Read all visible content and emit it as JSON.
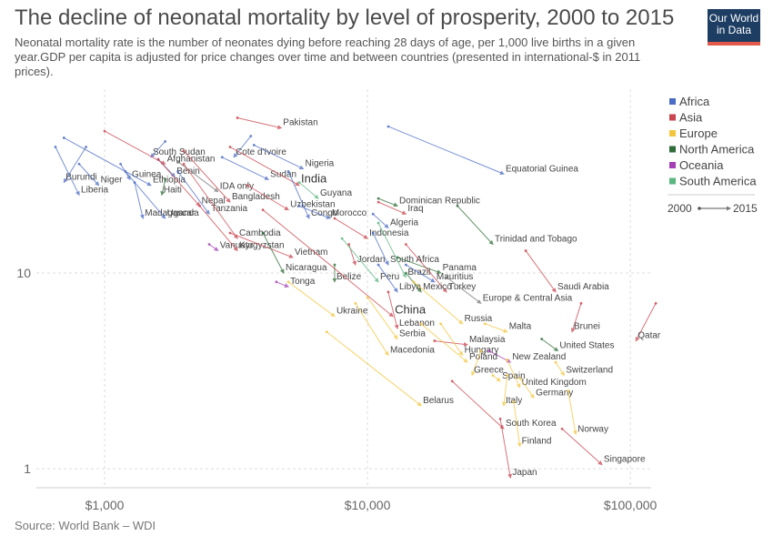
{
  "header": {
    "title": "The decline of neonatal mortality by level of prosperity, 2000 to 2015",
    "subtitle": "Neonatal mortality rate is the number of neonates dying before reaching 28 days of age, per 1,000 live births in a given year.GDP per capita is adjusted for price changes over time and between countries (presented in international-$ in 2011 prices).",
    "logo_line1": "Our World",
    "logo_line2": "in Data"
  },
  "footer": {
    "source": "Source: World Bank – WDI"
  },
  "colors": {
    "Africa": "#4b6cc4",
    "Asia": "#c9454f",
    "Europe": "#f3c640",
    "North America": "#2e6d38",
    "Oceania": "#a43fb5",
    "South America": "#5ab780",
    "World": "#777777"
  },
  "chart_data": {
    "type": "scatter",
    "x_scale": "log",
    "y_scale": "log",
    "xlim": [
      550,
      120000
    ],
    "ylim": [
      0.8,
      78
    ],
    "x_ticks": [
      {
        "value": 1000,
        "label": "$1,000"
      },
      {
        "value": 10000,
        "label": "$10,000"
      },
      {
        "value": 100000,
        "label": "$100,000"
      }
    ],
    "y_ticks": [
      {
        "value": 1,
        "label": "1"
      },
      {
        "value": 10,
        "label": "10"
      }
    ],
    "grid": true,
    "legend": {
      "position": "right",
      "entries": [
        "Africa",
        "Asia",
        "Europe",
        "North America",
        "Oceania",
        "South America"
      ],
      "arrow_start": "2000",
      "arrow_end": "2015"
    },
    "series": [
      {
        "name": "Pakistan",
        "region": "Asia",
        "x": [
          3200,
          4700
        ],
        "y": [
          62,
          55
        ],
        "label_size": "small"
      },
      {
        "name": "South Sudan",
        "region": "Africa",
        "x": [
          1700,
          1500
        ],
        "y": [
          47,
          39
        ],
        "label_size": "small"
      },
      {
        "name": "Afghanistan",
        "region": "Asia",
        "x": [
          1000,
          1700
        ],
        "y": [
          53,
          36
        ],
        "label_size": "small"
      },
      {
        "name": "Cote d'Ivoire",
        "region": "Africa",
        "x": [
          3600,
          3100
        ],
        "y": [
          50,
          39
        ],
        "label_size": "small"
      },
      {
        "name": "Nigeria",
        "region": "Africa",
        "x": [
          3700,
          5700
        ],
        "y": [
          45,
          34
        ],
        "label_size": "small"
      },
      {
        "name": "Benin",
        "region": "Africa",
        "x": [
          1600,
          1850
        ],
        "y": [
          38,
          31
        ],
        "label_size": "small"
      },
      {
        "name": "Guinea",
        "region": "Africa",
        "x": [
          1150,
          1250
        ],
        "y": [
          36,
          30
        ],
        "label_size": "small"
      },
      {
        "name": "Sudan",
        "region": "Africa",
        "x": [
          2800,
          4200
        ],
        "y": [
          39,
          30
        ],
        "label_size": "small"
      },
      {
        "name": "India",
        "region": "Asia",
        "x": [
          3000,
          5500
        ],
        "y": [
          44,
          28
        ],
        "label_size": "large"
      },
      {
        "name": "Ethiopia",
        "region": "Africa",
        "x": [
          700,
          1500
        ],
        "y": [
          49,
          28
        ],
        "label_size": "small"
      },
      {
        "name": "Burundi",
        "region": "Africa",
        "x": [
          850,
          700
        ],
        "y": [
          44,
          29
        ],
        "label_size": "small"
      },
      {
        "name": "Niger",
        "region": "Africa",
        "x": [
          800,
          950
        ],
        "y": [
          36,
          28
        ],
        "label_size": "small"
      },
      {
        "name": "Haiti",
        "region": "North America",
        "x": [
          1700,
          1650
        ],
        "y": [
          30,
          25
        ],
        "label_size": "small"
      },
      {
        "name": "IDA only",
        "region": "World",
        "x": [
          1900,
          2700
        ],
        "y": [
          37,
          26
        ],
        "label_size": "small"
      },
      {
        "name": "Liberia",
        "region": "Africa",
        "x": [
          650,
          800
        ],
        "y": [
          44,
          25
        ],
        "label_size": "small"
      },
      {
        "name": "Nepal",
        "region": "Asia",
        "x": [
          1600,
          2300
        ],
        "y": [
          38,
          22
        ],
        "label_size": "small"
      },
      {
        "name": "Bangladesh",
        "region": "Asia",
        "x": [
          2000,
          3000
        ],
        "y": [
          42,
          23
        ],
        "label_size": "small"
      },
      {
        "name": "Guyana",
        "region": "South America",
        "x": [
          5500,
          6500
        ],
        "y": [
          29,
          24
        ],
        "label_size": "small"
      },
      {
        "name": "Dominican Republic",
        "region": "North America",
        "x": [
          11000,
          13000
        ],
        "y": [
          24,
          22
        ],
        "label_size": "small"
      },
      {
        "name": "Equatorial Guinea",
        "region": "Africa",
        "x": [
          12000,
          33000
        ],
        "y": [
          56,
          32
        ],
        "label_size": "small"
      },
      {
        "name": "Uzbekistan",
        "region": "Asia",
        "x": [
          3500,
          5000
        ],
        "y": [
          28,
          21
        ],
        "label_size": "small"
      },
      {
        "name": "Madagascar",
        "region": "Africa",
        "x": [
          1300,
          1400
        ],
        "y": [
          29,
          19
        ],
        "label_size": "small"
      },
      {
        "name": "Uganda",
        "region": "Africa",
        "x": [
          1200,
          1700
        ],
        "y": [
          33,
          19
        ],
        "label_size": "small"
      },
      {
        "name": "Tanzania",
        "region": "Africa",
        "x": [
          1900,
          2500
        ],
        "y": [
          33,
          20
        ],
        "label_size": "small"
      },
      {
        "name": "Congo",
        "region": "Africa",
        "x": [
          5000,
          6000
        ],
        "y": [
          33,
          19
        ],
        "label_size": "small"
      },
      {
        "name": "Morocco",
        "region": "Africa",
        "x": [
          5500,
          7200
        ],
        "y": [
          22,
          19
        ],
        "label_size": "small"
      },
      {
        "name": "Iraq",
        "region": "Asia",
        "x": [
          11000,
          14000
        ],
        "y": [
          23,
          20
        ],
        "label_size": "small"
      },
      {
        "name": "Algeria",
        "region": "Africa",
        "x": [
          10500,
          12000
        ],
        "y": [
          20,
          17
        ],
        "label_size": "small"
      },
      {
        "name": "Cambodia",
        "region": "Asia",
        "x": [
          2000,
          3200
        ],
        "y": [
          36,
          15
        ],
        "label_size": "small"
      },
      {
        "name": "Indonesia",
        "region": "Asia",
        "x": [
          7500,
          10000
        ],
        "y": [
          19,
          15
        ],
        "label_size": "small"
      },
      {
        "name": "Trinidad and Tobago",
        "region": "North America",
        "x": [
          22000,
          30000
        ],
        "y": [
          22,
          14
        ],
        "label_size": "small"
      },
      {
        "name": "Vanuatu",
        "region": "Oceania",
        "x": [
          2500,
          2700
        ],
        "y": [
          14,
          13
        ],
        "label_size": "small"
      },
      {
        "name": "Kyrgyzstan",
        "region": "Asia",
        "x": [
          2300,
          3200
        ],
        "y": [
          22,
          13
        ],
        "label_size": "small"
      },
      {
        "name": "Vietnam",
        "region": "Asia",
        "x": [
          3000,
          5200
        ],
        "y": [
          16,
          12
        ],
        "label_size": "small"
      },
      {
        "name": "South Africa",
        "region": "Africa",
        "x": [
          10500,
          12000
        ],
        "y": [
          16,
          11
        ],
        "label_size": "small"
      },
      {
        "name": "Jordan",
        "region": "Asia",
        "x": [
          8500,
          9000
        ],
        "y": [
          14,
          11
        ],
        "label_size": "small"
      },
      {
        "name": "Nicaragua",
        "region": "North America",
        "x": [
          4000,
          4800
        ],
        "y": [
          16,
          10
        ],
        "label_size": "small"
      },
      {
        "name": "Panama",
        "region": "North America",
        "x": [
          13000,
          19000
        ],
        "y": [
          12,
          10
        ],
        "label_size": "small"
      },
      {
        "name": "Brazil",
        "region": "South America",
        "x": [
          11000,
          14000
        ],
        "y": [
          18,
          9.5
        ],
        "label_size": "small"
      },
      {
        "name": "Mauritius",
        "region": "Africa",
        "x": [
          14000,
          18000
        ],
        "y": [
          11,
          9
        ],
        "label_size": "small"
      },
      {
        "name": "Saudi Arabia",
        "region": "Asia",
        "x": [
          40000,
          52000
        ],
        "y": [
          13,
          8
        ],
        "label_size": "small"
      },
      {
        "name": "Belize",
        "region": "North America",
        "x": [
          7500,
          7500
        ],
        "y": [
          11,
          9
        ],
        "label_size": "small"
      },
      {
        "name": "Peru",
        "region": "South America",
        "x": [
          8000,
          11000
        ],
        "y": [
          15,
          9
        ],
        "label_size": "small"
      },
      {
        "name": "Tonga",
        "region": "Oceania",
        "x": [
          4500,
          5000
        ],
        "y": [
          9,
          8.5
        ],
        "label_size": "small"
      },
      {
        "name": "Libya",
        "region": "Africa",
        "x": [
          11000,
          13000
        ],
        "y": [
          11,
          8
        ],
        "label_size": "small"
      },
      {
        "name": "Turkey",
        "region": "Asia",
        "x": [
          14000,
          20000
        ],
        "y": [
          14,
          8
        ],
        "label_size": "small"
      },
      {
        "name": "Mexico",
        "region": "North America",
        "x": [
          14000,
          16000
        ],
        "y": [
          10,
          8
        ],
        "label_size": "small"
      },
      {
        "name": "Europe & Central Asia",
        "region": "World",
        "x": [
          20000,
          27000
        ],
        "y": [
          9.5,
          7
        ],
        "label_size": "small"
      },
      {
        "name": "Ukraine",
        "region": "Europe",
        "x": [
          5000,
          7500
        ],
        "y": [
          9,
          6
        ],
        "label_size": "small"
      },
      {
        "name": "China",
        "region": "Asia",
        "x": [
          4000,
          12500
        ],
        "y": [
          21,
          6
        ],
        "label_size": "large"
      },
      {
        "name": "Russia",
        "region": "Europe",
        "x": [
          15000,
          23000
        ],
        "y": [
          9,
          5.5
        ],
        "label_size": "small"
      },
      {
        "name": "Lebanon",
        "region": "Asia",
        "x": [
          12000,
          13000
        ],
        "y": [
          8,
          5.2
        ],
        "label_size": "small"
      },
      {
        "name": "Malta",
        "region": "Europe",
        "x": [
          28000,
          34000
        ],
        "y": [
          5.5,
          5
        ],
        "label_size": "small"
      },
      {
        "name": "Brunei",
        "region": "Asia",
        "x": [
          65000,
          60000
        ],
        "y": [
          7,
          5
        ],
        "label_size": "small"
      },
      {
        "name": "Serbia",
        "region": "Europe",
        "x": [
          10000,
          13000
        ],
        "y": [
          7.5,
          4.6
        ],
        "label_size": "small"
      },
      {
        "name": "Malaysia",
        "region": "Asia",
        "x": [
          18000,
          24000
        ],
        "y": [
          4.5,
          4.3
        ],
        "label_size": "small"
      },
      {
        "name": "Qatar",
        "region": "Asia",
        "x": [
          125000,
          105000
        ],
        "y": [
          7,
          4.5
        ],
        "label_size": "small"
      },
      {
        "name": "United States",
        "region": "North America",
        "x": [
          46000,
          53000
        ],
        "y": [
          4.6,
          4
        ],
        "label_size": "small"
      },
      {
        "name": "Hungary",
        "region": "Europe",
        "x": [
          19000,
          23000
        ],
        "y": [
          5.5,
          3.8
        ],
        "label_size": "small"
      },
      {
        "name": "Macedonia",
        "region": "Europe",
        "x": [
          9000,
          12000
        ],
        "y": [
          7,
          3.8
        ],
        "label_size": "small"
      },
      {
        "name": "New Zealand",
        "region": "Oceania",
        "x": [
          29000,
          35000
        ],
        "y": [
          4,
          3.5
        ],
        "label_size": "small"
      },
      {
        "name": "Poland",
        "region": "Europe",
        "x": [
          16000,
          24000
        ],
        "y": [
          5.5,
          3.5
        ],
        "label_size": "small"
      },
      {
        "name": "Greece",
        "region": "Europe",
        "x": [
          27000,
          25000
        ],
        "y": [
          4,
          3
        ],
        "label_size": "small"
      },
      {
        "name": "Spain",
        "region": "Europe",
        "x": [
          30000,
          32000
        ],
        "y": [
          3,
          2.8
        ],
        "label_size": "small"
      },
      {
        "name": "Switzerland",
        "region": "Europe",
        "x": [
          52000,
          56000
        ],
        "y": [
          3.5,
          3
        ],
        "label_size": "small"
      },
      {
        "name": "United Kingdom",
        "region": "Europe",
        "x": [
          34000,
          38000
        ],
        "y": [
          3.6,
          2.6
        ],
        "label_size": "small"
      },
      {
        "name": "Germany",
        "region": "Europe",
        "x": [
          38000,
          43000
        ],
        "y": [
          2.9,
          2.3
        ],
        "label_size": "small"
      },
      {
        "name": "Italy",
        "region": "Europe",
        "x": [
          34000,
          33000
        ],
        "y": [
          3,
          2.1
        ],
        "label_size": "small"
      },
      {
        "name": "Belarus",
        "region": "Europe",
        "x": [
          7000,
          16000
        ],
        "y": [
          5,
          2.1
        ],
        "label_size": "small"
      },
      {
        "name": "South Korea",
        "region": "Asia",
        "x": [
          21000,
          33000
        ],
        "y": [
          2.8,
          1.6
        ],
        "label_size": "small"
      },
      {
        "name": "Norway",
        "region": "Europe",
        "x": [
          58000,
          62000
        ],
        "y": [
          2.5,
          1.5
        ],
        "label_size": "small"
      },
      {
        "name": "Finland",
        "region": "Europe",
        "x": [
          36000,
          38000
        ],
        "y": [
          2.2,
          1.3
        ],
        "label_size": "small"
      },
      {
        "name": "Singapore",
        "region": "Asia",
        "x": [
          55000,
          78000
        ],
        "y": [
          1.6,
          1.05
        ],
        "label_size": "small"
      },
      {
        "name": "Japan",
        "region": "Asia",
        "x": [
          32000,
          35000
        ],
        "y": [
          1.8,
          0.9
        ],
        "label_size": "small"
      }
    ]
  }
}
